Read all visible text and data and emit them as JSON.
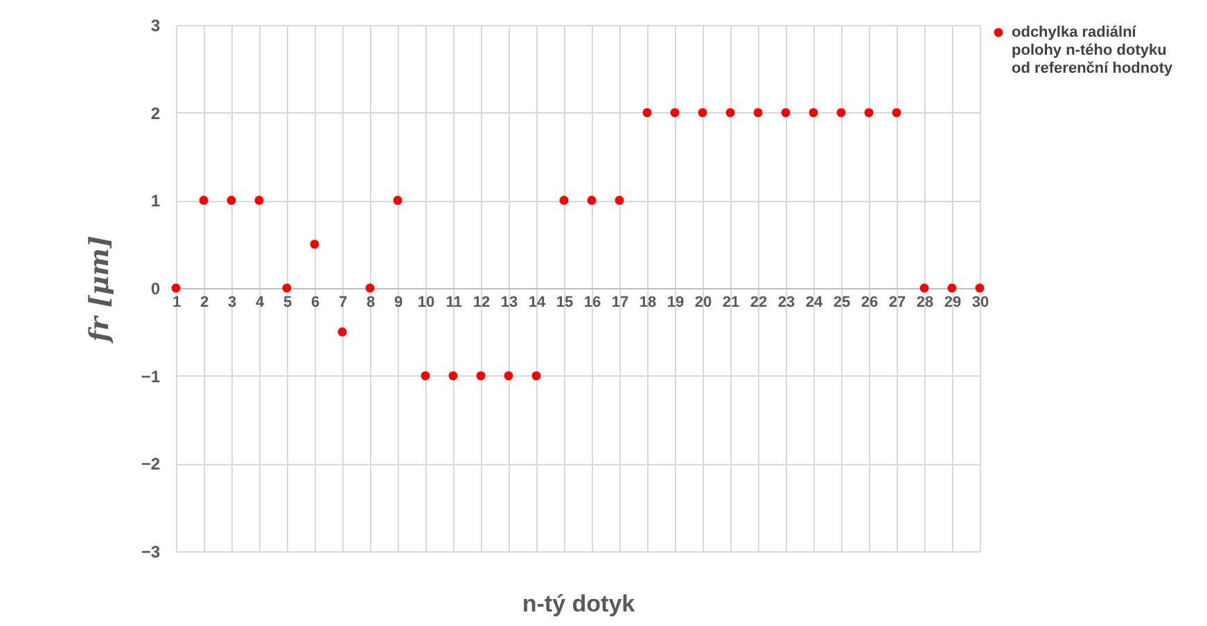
{
  "chart_data": {
    "type": "scatter",
    "xlabel": "n-tý dotyk",
    "ylabel": "fr [μm]",
    "x": [
      1,
      2,
      3,
      4,
      5,
      6,
      7,
      8,
      9,
      10,
      11,
      12,
      13,
      14,
      15,
      16,
      17,
      18,
      19,
      20,
      21,
      22,
      23,
      24,
      25,
      26,
      27,
      28,
      29,
      30
    ],
    "series": [
      {
        "name": "odchylka radiální polohy n-tého dotyku od referenční hodnoty",
        "color": "#ff0000",
        "values": [
          0,
          1,
          1,
          1,
          0,
          0.5,
          -0.5,
          0,
          1,
          -1,
          -1,
          -1,
          -1,
          -1,
          1,
          1,
          1,
          2,
          2,
          2,
          2,
          2,
          2,
          2,
          2,
          2,
          2,
          0,
          0,
          0
        ]
      }
    ],
    "xlim": [
      1,
      30
    ],
    "xticks": [
      1,
      2,
      3,
      4,
      5,
      6,
      7,
      8,
      9,
      10,
      11,
      12,
      13,
      14,
      15,
      16,
      17,
      18,
      19,
      20,
      21,
      22,
      23,
      24,
      25,
      26,
      27,
      28,
      29,
      30
    ],
    "ylim": [
      -3,
      3
    ],
    "yticks": [
      -3,
      -2,
      -1,
      0,
      1,
      2,
      3
    ],
    "grid": true,
    "legend": "right",
    "marker": "circle"
  }
}
